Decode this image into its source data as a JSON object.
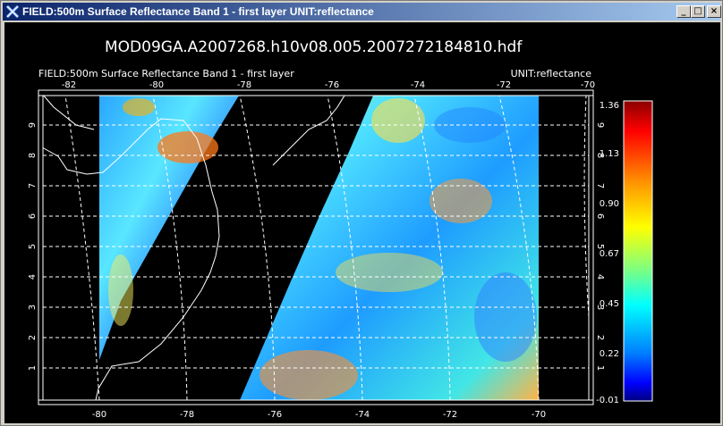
{
  "window": {
    "title": "FIELD:500m Surface Reflectance Band 1 - first layer  UNIT:reflectance",
    "minimize_glyph": "_",
    "maximize_glyph": "□",
    "close_glyph": "×"
  },
  "plot": {
    "file_title": "MOD09GA.A2007268.h10v08.005.2007272184810.hdf",
    "field_label": "FIELD:500m Surface Reflectance Band 1 - first layer",
    "unit_label": "UNIT:reflectance",
    "top_lon_ticks": [
      "-82",
      "-80",
      "-78",
      "-76",
      "-74",
      "-72",
      "-70"
    ],
    "bottom_lon_ticks": [
      "-80",
      "-78",
      "-76",
      "-74",
      "-72",
      "-70"
    ],
    "lat_ticks": [
      "1",
      "2",
      "3",
      "4",
      "5",
      "6",
      "7",
      "8",
      "9"
    ],
    "colorbar_ticks": [
      "1.36",
      "1.13",
      "0.90",
      "0.67",
      "0.45",
      "0.22",
      "-0.01"
    ],
    "colors": {
      "background": "#000000",
      "gridline": "#ffffff",
      "colorbar_top": "#a00000",
      "colorbar_bottom": "#00007f"
    }
  }
}
